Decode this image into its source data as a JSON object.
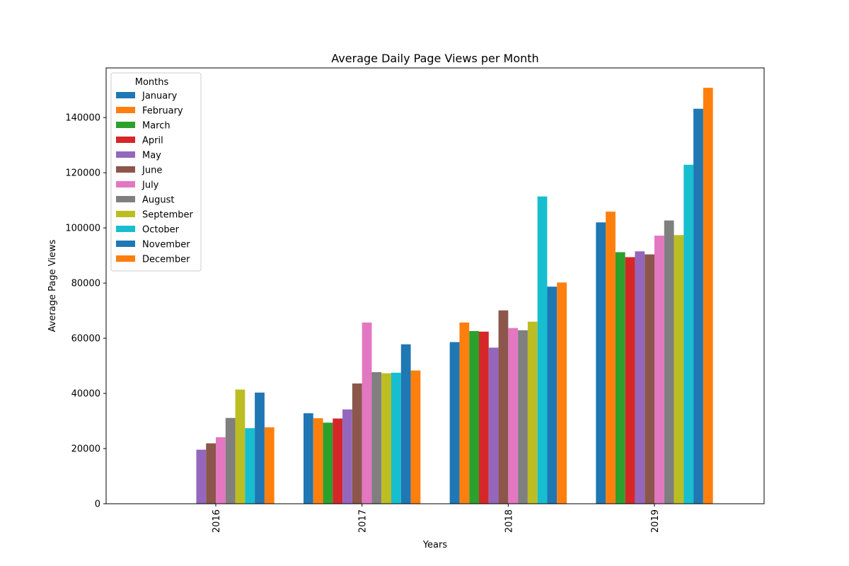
{
  "chart_data": {
    "type": "bar",
    "title": "Average Daily Page Views per Month",
    "xlabel": "Years",
    "ylabel": "Average Page Views",
    "categories": [
      "2016",
      "2017",
      "2018",
      "2019"
    ],
    "ylim": [
      0,
      158000
    ],
    "yticks": [
      0,
      20000,
      40000,
      60000,
      80000,
      100000,
      120000,
      140000
    ],
    "legend": {
      "title": "Months",
      "placement": "top-left"
    },
    "series": [
      {
        "name": "January",
        "color": "#1f77b4",
        "values": [
          null,
          32800,
          58600,
          102000
        ]
      },
      {
        "name": "February",
        "color": "#ff7f0e",
        "values": [
          null,
          31000,
          65700,
          105900
        ]
      },
      {
        "name": "March",
        "color": "#2ca02c",
        "values": [
          null,
          29400,
          62600,
          91200
        ]
      },
      {
        "name": "April",
        "color": "#d62728",
        "values": [
          null,
          30900,
          62400,
          89400
        ]
      },
      {
        "name": "May",
        "color": "#9467bd",
        "values": [
          19600,
          34200,
          56600,
          91500
        ]
      },
      {
        "name": "June",
        "color": "#8c564b",
        "values": [
          21900,
          43600,
          70100,
          90400
        ]
      },
      {
        "name": "July",
        "color": "#e377c2",
        "values": [
          24100,
          65700,
          63700,
          97200
        ]
      },
      {
        "name": "August",
        "color": "#7f7f7f",
        "values": [
          31100,
          47700,
          62900,
          102700
        ]
      },
      {
        "name": "September",
        "color": "#bcbd22",
        "values": [
          41400,
          47300,
          66000,
          97400
        ]
      },
      {
        "name": "October",
        "color": "#17becf",
        "values": [
          27400,
          47500,
          111400,
          122900
        ]
      },
      {
        "name": "November",
        "color": "#1f77b4",
        "values": [
          40300,
          57800,
          78700,
          143200
        ]
      },
      {
        "name": "December",
        "color": "#ff7f0e",
        "values": [
          27700,
          48300,
          80200,
          150800
        ]
      }
    ]
  }
}
